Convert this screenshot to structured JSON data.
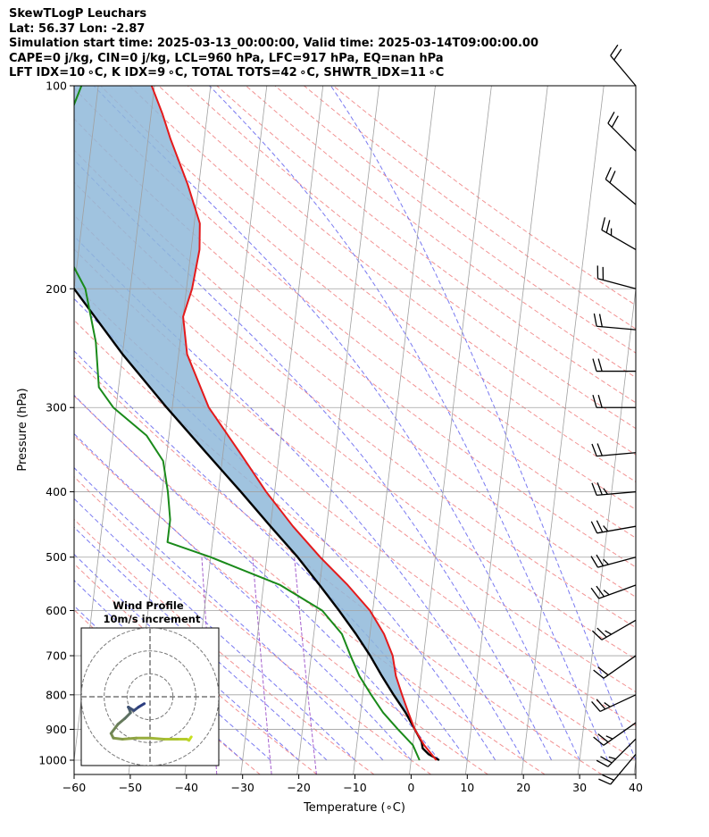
{
  "header": {
    "lines": [
      "SkewTLogP Leuchars",
      "Lat: 56.37   Lon: -2.87",
      "Simulation start time: 2025-03-13_00:00:00, Valid time: 2025-03-14T09:00:00.00",
      "CAPE=0 j/kg, CIN=0 j/kg, LCL=960 hPa, LFC=917 hPa, EQ=nan hPa",
      "LFT IDX=10 ∘C, K IDX=9 ∘C, TOTAL TOTS=42 ∘C, SHWTR_IDX=11 ∘C"
    ]
  },
  "chart_data": {
    "type": "line",
    "subtype": "skew-t log-p",
    "xlabel": "Temperature (∘C)",
    "ylabel": "Pressure (hPa)",
    "xlim": [
      -60,
      40
    ],
    "ylim": [
      1050,
      100
    ],
    "yscale": "log",
    "x_ticks": [
      "−60",
      "−50",
      "−40",
      "−30",
      "−20",
      "−10",
      "0",
      "10",
      "20",
      "30",
      "40"
    ],
    "x_tick_values": [
      -60,
      -50,
      -40,
      -30,
      -20,
      -10,
      0,
      10,
      20,
      30,
      40
    ],
    "y_ticks": [
      "100",
      "200",
      "300",
      "400",
      "500",
      "600",
      "700",
      "800",
      "900",
      "1000"
    ],
    "y_tick_values": [
      100,
      200,
      300,
      400,
      500,
      600,
      700,
      800,
      900,
      1000
    ],
    "grid": true,
    "colors": {
      "temperature": "#e41a1c",
      "dewpoint": "#1a8a1a",
      "parcel": "#000000",
      "cape_fill": "#8fb8d9",
      "isotherm": "#a0a0a0",
      "dry_adiabat": "#f08080",
      "moist_adiabat": "#6a6af0",
      "mixing_ratio": "#9b4fc9"
    },
    "series": [
      {
        "key": "temperature",
        "points": [
          {
            "p": 1000,
            "x": 4.5
          },
          {
            "p": 950,
            "x": 2.0
          },
          {
            "p": 900,
            "x": 0.0
          },
          {
            "p": 850,
            "x": -1.5
          },
          {
            "p": 800,
            "x": -3.0
          },
          {
            "p": 750,
            "x": -4.5
          },
          {
            "p": 700,
            "x": -5.5
          },
          {
            "p": 650,
            "x": -7.5
          },
          {
            "p": 600,
            "x": -10.5
          },
          {
            "p": 550,
            "x": -15.0
          },
          {
            "p": 500,
            "x": -20.5
          },
          {
            "p": 450,
            "x": -26.0
          },
          {
            "p": 400,
            "x": -31.5
          },
          {
            "p": 350,
            "x": -37.0
          },
          {
            "p": 300,
            "x": -43.5
          },
          {
            "p": 250,
            "x": -48.5
          },
          {
            "p": 220,
            "x": -50.0
          },
          {
            "p": 200,
            "x": -49.0
          },
          {
            "p": 175,
            "x": -48.5
          },
          {
            "p": 160,
            "x": -49.0
          },
          {
            "p": 140,
            "x": -52.0
          },
          {
            "p": 120,
            "x": -56.0
          },
          {
            "p": 110,
            "x": -58.0
          },
          {
            "p": 100,
            "x": -60.5
          }
        ]
      },
      {
        "key": "dewpoint",
        "points": [
          {
            "p": 1000,
            "x": 1.5
          },
          {
            "p": 950,
            "x": 0.0
          },
          {
            "p": 900,
            "x": -3.0
          },
          {
            "p": 850,
            "x": -6.0
          },
          {
            "p": 800,
            "x": -8.5
          },
          {
            "p": 750,
            "x": -11.0
          },
          {
            "p": 700,
            "x": -13.0
          },
          {
            "p": 650,
            "x": -15.0
          },
          {
            "p": 600,
            "x": -19.0
          },
          {
            "p": 550,
            "x": -27.0
          },
          {
            "p": 500,
            "x": -40.0
          },
          {
            "p": 475,
            "x": -48.0
          },
          {
            "p": 440,
            "x": -48.0
          },
          {
            "p": 400,
            "x": -49.0
          },
          {
            "p": 360,
            "x": -50.5
          },
          {
            "p": 330,
            "x": -54.0
          },
          {
            "p": 300,
            "x": -60.5
          },
          {
            "p": 280,
            "x": -63.5
          },
          {
            "p": 240,
            "x": -65.0
          },
          {
            "p": 200,
            "x": -68.0
          },
          {
            "p": 175,
            "x": -72.5
          },
          {
            "p": 160,
            "x": -75.5
          },
          {
            "p": 145,
            "x": -78.5
          },
          {
            "p": 130,
            "x": -77.0
          },
          {
            "p": 115,
            "x": -75.0
          },
          {
            "p": 100,
            "x": -73.0
          }
        ]
      },
      {
        "key": "parcel",
        "points": [
          {
            "p": 1000,
            "x": 5.0
          },
          {
            "p": 980,
            "x": 3.0
          },
          {
            "p": 960,
            "x": 1.8
          },
          {
            "p": 940,
            "x": 1.5
          },
          {
            "p": 900,
            "x": 0.0
          },
          {
            "p": 850,
            "x": -2.0
          },
          {
            "p": 800,
            "x": -4.5
          },
          {
            "p": 750,
            "x": -7.0
          },
          {
            "p": 700,
            "x": -9.5
          },
          {
            "p": 650,
            "x": -12.5
          },
          {
            "p": 600,
            "x": -16.0
          },
          {
            "p": 550,
            "x": -20.0
          },
          {
            "p": 500,
            "x": -24.5
          },
          {
            "p": 450,
            "x": -30.0
          },
          {
            "p": 400,
            "x": -36.0
          },
          {
            "p": 350,
            "x": -43.0
          },
          {
            "p": 300,
            "x": -51.0
          },
          {
            "p": 250,
            "x": -60.0
          },
          {
            "p": 200,
            "x": -70.0
          },
          {
            "p": 150,
            "x": -82.0
          },
          {
            "p": 120,
            "x": -90.5
          },
          {
            "p": 100,
            "x": -97.0
          }
        ]
      }
    ],
    "wind_barbs": [
      {
        "p": 100,
        "direction": 320,
        "speed_kt": 20
      },
      {
        "p": 125,
        "direction": 315,
        "speed_kt": 20
      },
      {
        "p": 150,
        "direction": 310,
        "speed_kt": 20
      },
      {
        "p": 175,
        "direction": 300,
        "speed_kt": 25
      },
      {
        "p": 200,
        "direction": 285,
        "speed_kt": 20
      },
      {
        "p": 230,
        "direction": 275,
        "speed_kt": 20
      },
      {
        "p": 265,
        "direction": 270,
        "speed_kt": 20
      },
      {
        "p": 300,
        "direction": 270,
        "speed_kt": 20
      },
      {
        "p": 350,
        "direction": 265,
        "speed_kt": 20
      },
      {
        "p": 400,
        "direction": 265,
        "speed_kt": 25
      },
      {
        "p": 450,
        "direction": 260,
        "speed_kt": 25
      },
      {
        "p": 500,
        "direction": 255,
        "speed_kt": 25
      },
      {
        "p": 550,
        "direction": 250,
        "speed_kt": 25
      },
      {
        "p": 620,
        "direction": 240,
        "speed_kt": 25
      },
      {
        "p": 700,
        "direction": 235,
        "speed_kt": 20
      },
      {
        "p": 800,
        "direction": 245,
        "speed_kt": 25
      },
      {
        "p": 880,
        "direction": 235,
        "speed_kt": 25
      },
      {
        "p": 930,
        "direction": 225,
        "speed_kt": 25
      },
      {
        "p": 980,
        "direction": 220,
        "speed_kt": 20
      }
    ],
    "inset": {
      "type": "hodograph",
      "title_lines": [
        "Wind Profile",
        "10m/s increment"
      ],
      "rings": [
        10,
        20,
        30
      ],
      "range": [
        -30,
        30
      ],
      "points": [
        {
          "u": 18,
          "v": -17.5
        },
        {
          "u": 17,
          "v": -19
        },
        {
          "u": 16,
          "v": -18.5
        },
        {
          "u": 12,
          "v": -18.5
        },
        {
          "u": 6,
          "v": -18.5
        },
        {
          "u": 0,
          "v": -18
        },
        {
          "u": -6,
          "v": -18
        },
        {
          "u": -12,
          "v": -18.5
        },
        {
          "u": -16,
          "v": -18
        },
        {
          "u": -17,
          "v": -16
        },
        {
          "u": -14,
          "v": -12
        },
        {
          "u": -11,
          "v": -9.5
        },
        {
          "u": -8.5,
          "v": -7
        },
        {
          "u": -9,
          "v": -5.5
        },
        {
          "u": -9.5,
          "v": -4.5
        },
        {
          "u": -7,
          "v": -6
        },
        {
          "u": -5,
          "v": -4.5
        },
        {
          "u": -2.5,
          "v": -3
        }
      ]
    }
  }
}
